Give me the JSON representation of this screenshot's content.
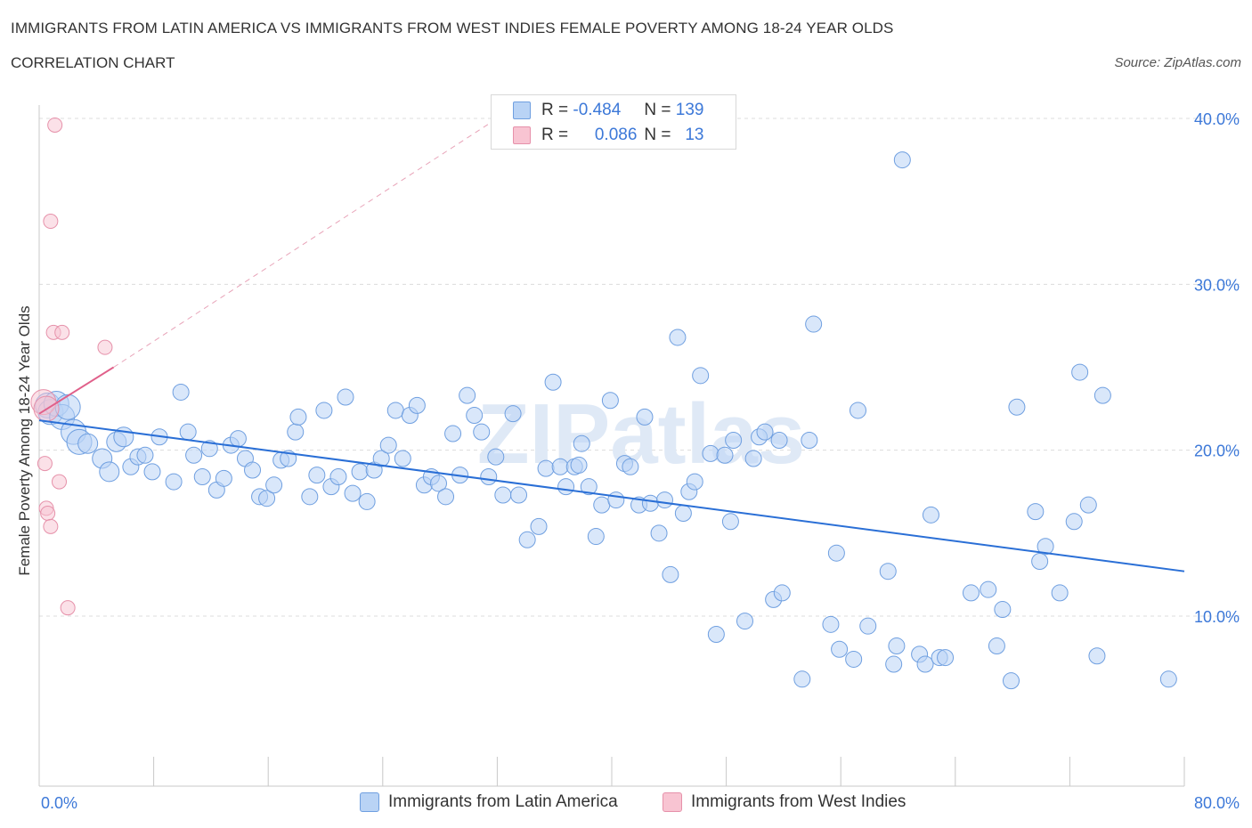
{
  "title": "IMMIGRANTS FROM LATIN AMERICA VS IMMIGRANTS FROM WEST INDIES FEMALE POVERTY AMONG 18-24 YEAR OLDS",
  "subtitle": "CORRELATION CHART",
  "source": "Source: ZipAtlas.com",
  "watermark": "ZIPatlas",
  "legend": {
    "r_label": "R =",
    "n_label": "N =",
    "blue": {
      "r": "-0.484",
      "n": "139"
    },
    "pink": {
      "r": "0.086",
      "n": "13"
    }
  },
  "colors": {
    "blue": "#6f9fe0",
    "blue_fill": "#b9d3f5",
    "pink": "#e691aa",
    "pink_fill": "#f8c4d2",
    "blue_line": "#2a6fd6",
    "pink_line": "#e0608a",
    "tick_label": "#3c78d8"
  },
  "chart_data": {
    "type": "scatter",
    "xlabel": "",
    "ylabel": "Female Poverty Among 18-24 Year Olds",
    "xlim": [
      0,
      80
    ],
    "ylim": [
      0,
      40
    ],
    "x_tick_labels": [
      "0.0%",
      "80.0%"
    ],
    "y_tick_labels": [
      "10.0%",
      "20.0%",
      "30.0%",
      "40.0%"
    ],
    "y_ticks": [
      10,
      20,
      30,
      40
    ],
    "grid": true,
    "series": [
      {
        "name": "Immigrants from Latin America",
        "color": "#6f9fe0",
        "trend": {
          "x": [
            0,
            80
          ],
          "y": [
            21.8,
            12.7
          ]
        },
        "points": [
          [
            0.6,
            22.7
          ],
          [
            0.8,
            22.3
          ],
          [
            1.2,
            22.8
          ],
          [
            1.6,
            22.0
          ],
          [
            2.0,
            22.6
          ],
          [
            2.4,
            21.1
          ],
          [
            2.8,
            20.5
          ],
          [
            3.4,
            20.4
          ],
          [
            4.4,
            19.5
          ],
          [
            4.9,
            18.7
          ],
          [
            5.4,
            20.5
          ],
          [
            5.9,
            20.8
          ],
          [
            6.4,
            19.0
          ],
          [
            6.9,
            19.6
          ],
          [
            7.4,
            19.7
          ],
          [
            7.9,
            18.7
          ],
          [
            8.4,
            20.8
          ],
          [
            9.4,
            18.1
          ],
          [
            9.9,
            23.5
          ],
          [
            10.4,
            21.1
          ],
          [
            10.8,
            19.7
          ],
          [
            11.4,
            18.4
          ],
          [
            11.9,
            20.1
          ],
          [
            12.4,
            17.6
          ],
          [
            12.9,
            18.3
          ],
          [
            13.4,
            20.3
          ],
          [
            13.9,
            20.7
          ],
          [
            14.4,
            19.5
          ],
          [
            14.9,
            18.8
          ],
          [
            15.4,
            17.2
          ],
          [
            15.9,
            17.1
          ],
          [
            16.4,
            17.9
          ],
          [
            16.9,
            19.4
          ],
          [
            17.4,
            19.5
          ],
          [
            17.9,
            21.1
          ],
          [
            18.1,
            22.0
          ],
          [
            18.9,
            17.2
          ],
          [
            19.4,
            18.5
          ],
          [
            19.9,
            22.4
          ],
          [
            20.4,
            17.8
          ],
          [
            20.9,
            18.4
          ],
          [
            21.4,
            23.2
          ],
          [
            21.9,
            17.4
          ],
          [
            22.4,
            18.7
          ],
          [
            22.9,
            16.9
          ],
          [
            23.4,
            18.8
          ],
          [
            23.9,
            19.5
          ],
          [
            24.4,
            20.3
          ],
          [
            24.9,
            22.4
          ],
          [
            25.4,
            19.5
          ],
          [
            25.9,
            22.1
          ],
          [
            26.4,
            22.7
          ],
          [
            26.9,
            17.9
          ],
          [
            27.4,
            18.4
          ],
          [
            27.9,
            18.0
          ],
          [
            28.4,
            17.2
          ],
          [
            28.9,
            21.0
          ],
          [
            29.4,
            18.5
          ],
          [
            29.9,
            23.3
          ],
          [
            30.4,
            22.1
          ],
          [
            30.9,
            21.1
          ],
          [
            31.4,
            18.4
          ],
          [
            31.9,
            19.6
          ],
          [
            32.4,
            17.3
          ],
          [
            33.1,
            22.2
          ],
          [
            33.5,
            17.3
          ],
          [
            34.1,
            14.6
          ],
          [
            34.9,
            15.4
          ],
          [
            35.9,
            24.1
          ],
          [
            35.4,
            18.9
          ],
          [
            36.4,
            19.0
          ],
          [
            36.8,
            17.8
          ],
          [
            37.4,
            19.0
          ],
          [
            37.9,
            20.4
          ],
          [
            37.7,
            19.1
          ],
          [
            38.4,
            17.8
          ],
          [
            38.9,
            14.8
          ],
          [
            39.3,
            16.7
          ],
          [
            39.9,
            23.0
          ],
          [
            40.3,
            17.0
          ],
          [
            40.9,
            19.2
          ],
          [
            41.3,
            19.0
          ],
          [
            41.9,
            16.7
          ],
          [
            42.3,
            22.0
          ],
          [
            42.7,
            16.8
          ],
          [
            43.3,
            15.0
          ],
          [
            43.7,
            17.0
          ],
          [
            44.1,
            12.5
          ],
          [
            44.6,
            26.8
          ],
          [
            45.0,
            16.2
          ],
          [
            45.4,
            17.5
          ],
          [
            45.8,
            18.1
          ],
          [
            46.2,
            24.5
          ],
          [
            46.9,
            19.8
          ],
          [
            47.3,
            8.9
          ],
          [
            47.9,
            19.7
          ],
          [
            48.3,
            15.7
          ],
          [
            48.5,
            20.6
          ],
          [
            49.3,
            9.7
          ],
          [
            49.9,
            19.5
          ],
          [
            50.3,
            20.8
          ],
          [
            50.7,
            21.1
          ],
          [
            51.3,
            11.0
          ],
          [
            51.9,
            11.4
          ],
          [
            51.7,
            20.6
          ],
          [
            53.3,
            6.2
          ],
          [
            53.8,
            20.6
          ],
          [
            54.1,
            27.6
          ],
          [
            55.3,
            9.5
          ],
          [
            55.9,
            8.0
          ],
          [
            55.7,
            13.8
          ],
          [
            56.9,
            7.4
          ],
          [
            57.2,
            22.4
          ],
          [
            57.9,
            9.4
          ],
          [
            59.3,
            12.7
          ],
          [
            59.9,
            8.2
          ],
          [
            59.7,
            7.1
          ],
          [
            60.3,
            37.5
          ],
          [
            61.5,
            7.7
          ],
          [
            61.9,
            7.1
          ],
          [
            62.3,
            16.1
          ],
          [
            62.9,
            7.5
          ],
          [
            63.3,
            7.5
          ],
          [
            65.1,
            11.4
          ],
          [
            66.3,
            11.6
          ],
          [
            66.9,
            8.2
          ],
          [
            67.3,
            10.4
          ],
          [
            67.9,
            6.1
          ],
          [
            68.3,
            22.6
          ],
          [
            69.6,
            16.3
          ],
          [
            69.9,
            13.3
          ],
          [
            70.3,
            14.2
          ],
          [
            71.3,
            11.4
          ],
          [
            72.3,
            15.7
          ],
          [
            72.7,
            24.7
          ],
          [
            73.3,
            16.7
          ],
          [
            73.9,
            7.6
          ],
          [
            74.3,
            23.3
          ],
          [
            78.9,
            6.2
          ]
        ],
        "sizes": "large points near origin"
      },
      {
        "name": "Immigrants from West Indies",
        "color": "#e691aa",
        "trend": {
          "x": [
            0,
            5.2
          ],
          "y": [
            22.2,
            25.0
          ]
        },
        "trend_extension": {
          "x": [
            5.2,
            32.0
          ],
          "y": [
            25.0,
            40.0
          ]
        },
        "points": [
          [
            0.3,
            22.9
          ],
          [
            0.5,
            22.5
          ],
          [
            0.4,
            19.2
          ],
          [
            0.5,
            16.5
          ],
          [
            0.6,
            16.2
          ],
          [
            0.8,
            15.4
          ],
          [
            0.8,
            33.8
          ],
          [
            1.0,
            27.1
          ],
          [
            1.1,
            39.6
          ],
          [
            1.4,
            18.1
          ],
          [
            1.6,
            27.1
          ],
          [
            2.0,
            10.5
          ],
          [
            4.6,
            26.2
          ]
        ]
      }
    ]
  }
}
